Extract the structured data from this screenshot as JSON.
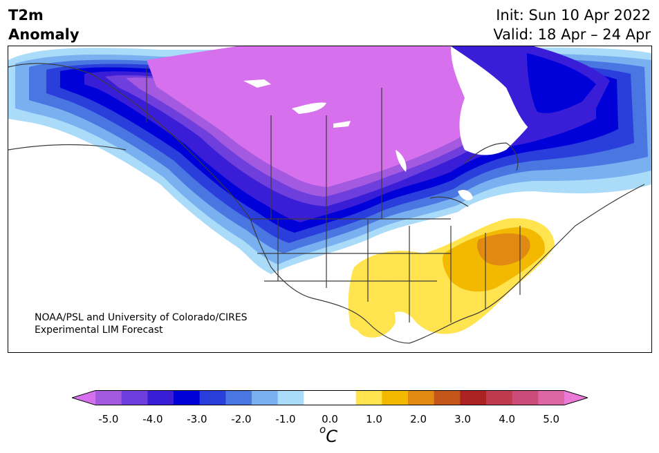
{
  "header": {
    "title_line1": "T2m",
    "title_line2": "Anomaly",
    "init_label": "Init: Sun 10 Apr 2022",
    "valid_label": "Valid: 18 Apr – 24 Apr"
  },
  "credit": {
    "line1": "NOAA/PSL and University of Colorado/CIRES",
    "line2": "Experimental LIM Forecast"
  },
  "colorbar": {
    "colors": [
      "#d670ec",
      "#a35ae0",
      "#6e3fdc",
      "#3a1ed7",
      "#0000d8",
      "#2a3edc",
      "#4a76e2",
      "#78b0f0",
      "#aadbf9",
      "#ffffff",
      "#ffffff",
      "#ffe44f",
      "#f3b900",
      "#e08a14",
      "#c55619",
      "#ad2222",
      "#c03a4e",
      "#cc4c79",
      "#dc66a6",
      "#ea7ad5"
    ],
    "tick_labels": [
      "-5.0",
      "-4.0",
      "-3.0",
      "-2.0",
      "-1.0",
      "0.0",
      "1.0",
      "2.0",
      "3.0",
      "4.0",
      "5.0"
    ],
    "unit_base": "C",
    "unit_sup": "o"
  },
  "map_palette": {
    "ocean": "#ffffff",
    "land": "#ffffff",
    "boundary": "#3a3a3a"
  }
}
